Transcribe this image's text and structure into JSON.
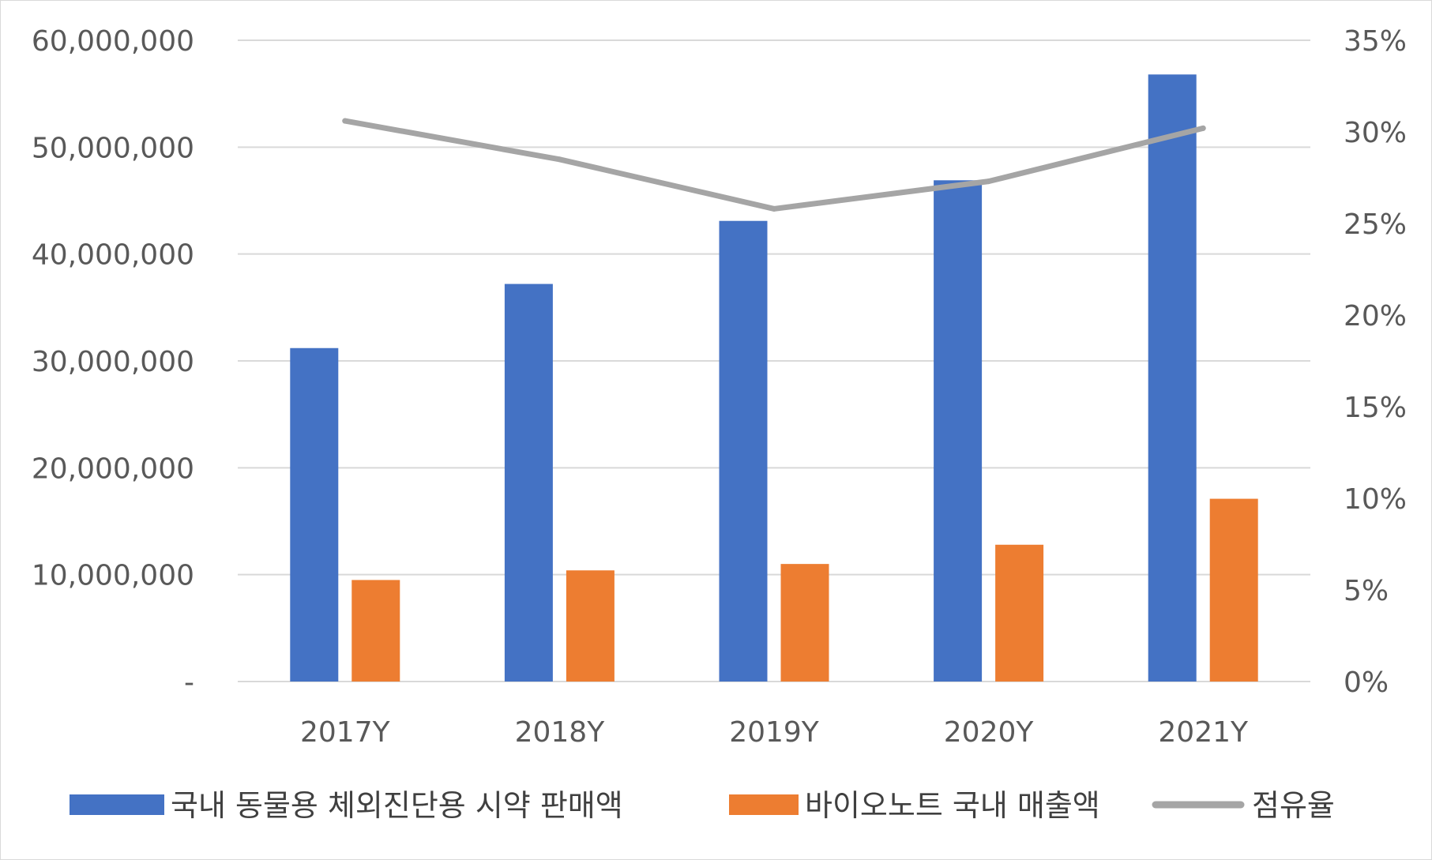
{
  "chart_data": {
    "type": "bar",
    "categories": [
      "2017Y",
      "2018Y",
      "2019Y",
      "2020Y",
      "2021Y"
    ],
    "series": [
      {
        "name": "국내 동물용 체외진단용 시약 판매액",
        "type": "bar",
        "axis": "left",
        "color": "#4472C4",
        "values": [
          31200000,
          37200000,
          43100000,
          46900000,
          56800000
        ]
      },
      {
        "name": "바이오노트 국내 매출액",
        "type": "bar",
        "axis": "left",
        "color": "#ED7D31",
        "values": [
          9500000,
          10400000,
          11000000,
          12800000,
          17100000
        ]
      },
      {
        "name": "점유율",
        "type": "line",
        "axis": "right",
        "color": "#A5A5A5",
        "values": [
          30.6,
          28.5,
          25.8,
          27.3,
          30.2
        ]
      }
    ],
    "y_left": {
      "ylim": [
        0,
        60000000
      ],
      "ticks": [
        0,
        10000000,
        20000000,
        30000000,
        40000000,
        50000000,
        60000000
      ],
      "tick_labels": [
        "-",
        "10,000,000",
        "20,000,000",
        "30,000,000",
        "40,000,000",
        "50,000,000",
        "60,000,000"
      ]
    },
    "y_right": {
      "ylim": [
        0,
        35
      ],
      "ticks": [
        0,
        5,
        10,
        15,
        20,
        25,
        30,
        35
      ],
      "tick_labels": [
        "0%",
        "5%",
        "10%",
        "15%",
        "20%",
        "25%",
        "30%",
        "35%"
      ]
    },
    "grid": true,
    "gridline_color": "#D9D9D9",
    "legend_position": "bottom",
    "title": "",
    "xlabel": "",
    "ylabel": ""
  }
}
